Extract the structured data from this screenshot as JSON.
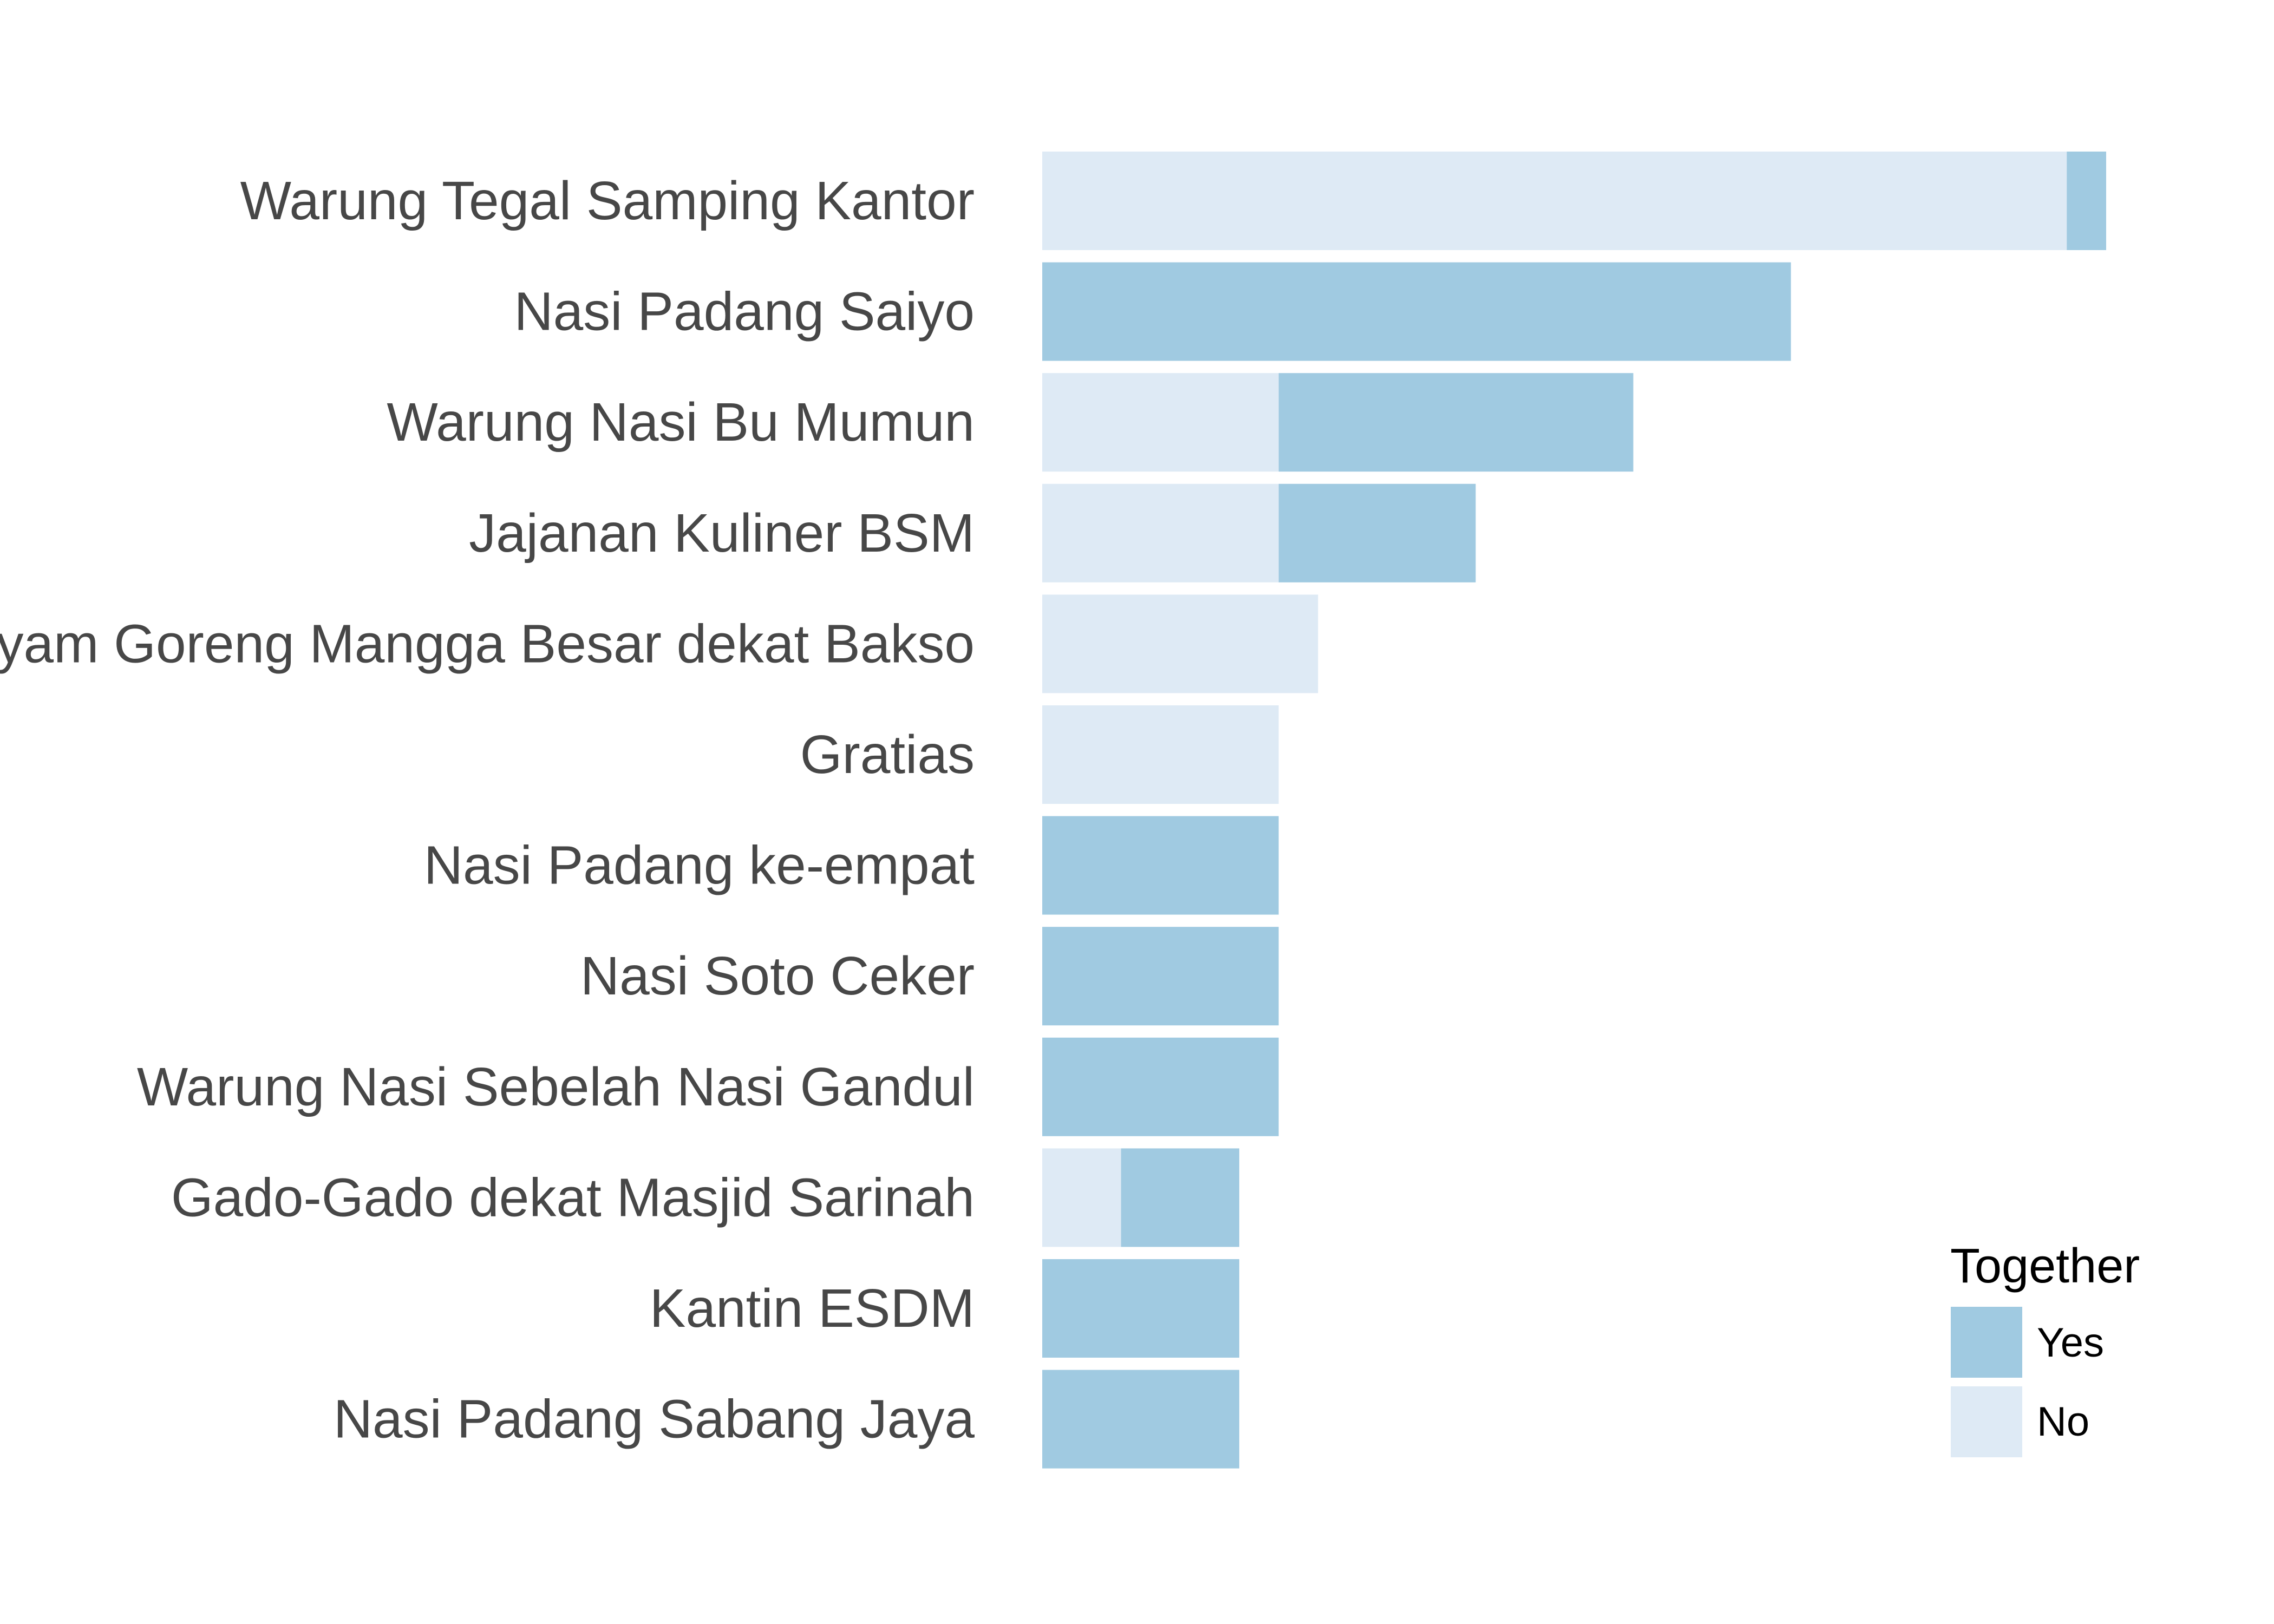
{
  "colors": {
    "yes": "#a0cae1",
    "no": "#deeaf5"
  },
  "chart_data": {
    "type": "bar",
    "orientation": "horizontal",
    "stacked": true,
    "grid": false,
    "title": "",
    "xlabel": "",
    "ylabel": "",
    "xlim": [
      0,
      27
    ],
    "categories": [
      "Warung Tegal Samping Kantor",
      "Nasi Padang Saiyo",
      "Warung Nasi Bu Mumun",
      "Jajanan Kuliner BSM",
      "Ayam Goreng Mangga Besar dekat Bakso",
      "Gratias",
      "Nasi Padang ke-empat",
      "Nasi Soto Ceker",
      "Warung Nasi Sebelah Nasi Gandul",
      "Gado-Gado dekat Masjid Sarinah",
      "Kantin ESDM",
      "Nasi Padang Sabang Jaya"
    ],
    "series": [
      {
        "name": "No",
        "color": "#deeaf5",
        "values": [
          26,
          0,
          6,
          6,
          7,
          6,
          0,
          0,
          0,
          2,
          0,
          0
        ]
      },
      {
        "name": "Yes",
        "color": "#a0cae1",
        "values": [
          1,
          19,
          9,
          5,
          0,
          0,
          6,
          6,
          6,
          3,
          5,
          5
        ]
      }
    ],
    "legend": {
      "title": "Together",
      "position": "bottom-right",
      "items": [
        "Yes",
        "No"
      ]
    }
  }
}
